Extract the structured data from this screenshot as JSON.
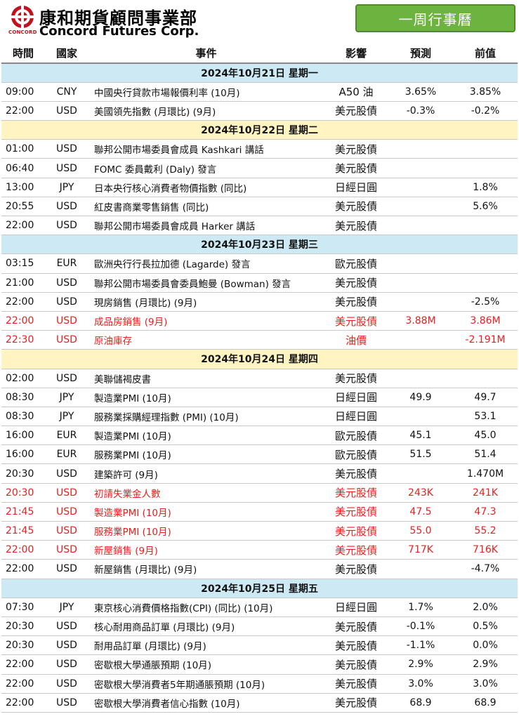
{
  "header": {
    "brand_cn": "康和期貨顧問事業部",
    "brand_en": "Concord Futures Corp.",
    "logo_text": "CONCORD",
    "title": "一周行事曆"
  },
  "columns": [
    "時間",
    "國家",
    "事件",
    "影響",
    "預測",
    "前值"
  ],
  "days": [
    {
      "date": "2024年10月21日  星期一",
      "events": [
        {
          "time": "09:00",
          "country": "CNY",
          "event": "中國央行貸款市場報價利率 (10月)",
          "impact": "A50 油",
          "forecast": "3.65%",
          "previous": "3.85%",
          "highlight": false
        },
        {
          "time": "22:00",
          "country": "USD",
          "event": "美國領先指數 (月環比) (9月)",
          "impact": "美元股債",
          "forecast": "-0.3%",
          "previous": "-0.2%",
          "highlight": false
        }
      ]
    },
    {
      "date": "2024年10月22日  星期二",
      "events": [
        {
          "time": "01:00",
          "country": "USD",
          "event": "聯邦公開市場委員會成員 Kashkari 講話",
          "impact": "美元股債",
          "forecast": "",
          "previous": "",
          "highlight": false
        },
        {
          "time": "06:40",
          "country": "USD",
          "event": "FOMC 委員戴利 (Daly) 發言",
          "impact": "美元股債",
          "forecast": "",
          "previous": "",
          "highlight": false
        },
        {
          "time": "13:00",
          "country": "JPY",
          "event": "日本央行核心消費者物價指數 (同比)",
          "impact": "日經日圓",
          "forecast": "",
          "previous": "1.8%",
          "highlight": false
        },
        {
          "time": "20:55",
          "country": "USD",
          "event": "紅皮書商業零售銷售 (同比)",
          "impact": "美元股債",
          "forecast": "",
          "previous": "5.6%",
          "highlight": false
        },
        {
          "time": "22:00",
          "country": "USD",
          "event": "聯邦公開市場委員會成員 Harker 講話",
          "impact": "美元股債",
          "forecast": "",
          "previous": "",
          "highlight": false
        }
      ]
    },
    {
      "date": "2024年10月23日  星期三",
      "events": [
        {
          "time": "03:15",
          "country": "EUR",
          "event": "歐洲央行行長拉加德 (Lagarde) 發言",
          "impact": "歐元股債",
          "forecast": "",
          "previous": "",
          "highlight": false
        },
        {
          "time": "21:00",
          "country": "USD",
          "event": "聯邦公開市場委員會委員鮑曼 (Bowman) 發言",
          "impact": "美元股債",
          "forecast": "",
          "previous": "",
          "highlight": false
        },
        {
          "time": "22:00",
          "country": "USD",
          "event": "現房銷售 (月環比) (9月)",
          "impact": "美元股債",
          "forecast": "",
          "previous": "-2.5%",
          "highlight": false
        },
        {
          "time": "22:00",
          "country": "USD",
          "event": "成品房銷售 (9月)",
          "impact": "美元股債",
          "forecast": "3.88M",
          "previous": "3.86M",
          "highlight": true
        },
        {
          "time": "22:30",
          "country": "USD",
          "event": "原油庫存",
          "impact": "油價",
          "forecast": "",
          "previous": "-2.191M",
          "highlight": true
        }
      ]
    },
    {
      "date": "2024年10月24日  星期四",
      "events": [
        {
          "time": "02:00",
          "country": "USD",
          "event": "美聯儲褐皮書",
          "impact": "美元股債",
          "forecast": "",
          "previous": "",
          "highlight": false
        },
        {
          "time": "08:30",
          "country": "JPY",
          "event": "製造業PMI (10月)",
          "impact": "日經日圓",
          "forecast": "49.9",
          "previous": "49.7",
          "highlight": false
        },
        {
          "time": "08:30",
          "country": "JPY",
          "event": "服務業採購經理指數 (PMI) (10月)",
          "impact": "日經日圓",
          "forecast": "",
          "previous": "53.1",
          "highlight": false
        },
        {
          "time": "16:00",
          "country": "EUR",
          "event": "製造業PMI (10月)",
          "impact": "歐元股債",
          "forecast": "45.1",
          "previous": "45.0",
          "highlight": false
        },
        {
          "time": "16:00",
          "country": "EUR",
          "event": "服務業PMI (10月)",
          "impact": "歐元股債",
          "forecast": "51.5",
          "previous": "51.4",
          "highlight": false
        },
        {
          "time": "20:30",
          "country": "USD",
          "event": "建築許可 (9月)",
          "impact": "美元股債",
          "forecast": "",
          "previous": "1.470M",
          "highlight": false
        },
        {
          "time": "20:30",
          "country": "USD",
          "event": "初請失業金人數",
          "impact": "美元股債",
          "forecast": "243K",
          "previous": "241K",
          "highlight": true
        },
        {
          "time": "21:45",
          "country": "USD",
          "event": "製造業PMI (10月)",
          "impact": "美元股債",
          "forecast": "47.5",
          "previous": "47.3",
          "highlight": true
        },
        {
          "time": "21:45",
          "country": "USD",
          "event": "服務業PMI (10月)",
          "impact": "美元股債",
          "forecast": "55.0",
          "previous": "55.2",
          "highlight": true
        },
        {
          "time": "22:00",
          "country": "USD",
          "event": "新屋銷售 (9月)",
          "impact": "美元股債",
          "forecast": "717K",
          "previous": "716K",
          "highlight": true
        },
        {
          "time": "22:00",
          "country": "USD",
          "event": "新屋銷售 (月環比) (9月)",
          "impact": "美元股債",
          "forecast": "",
          "previous": "-4.7%",
          "highlight": false
        }
      ]
    },
    {
      "date": "2024年10月25日  星期五",
      "events": [
        {
          "time": "07:30",
          "country": "JPY",
          "event": "東京核心消費價格指數(CPI) (同比) (10月)",
          "impact": "日經日圓",
          "forecast": "1.7%",
          "previous": "2.0%",
          "highlight": false
        },
        {
          "time": "20:30",
          "country": "USD",
          "event": "核心耐用商品訂單 (月環比) (9月)",
          "impact": "美元股債",
          "forecast": "-0.1%",
          "previous": "0.5%",
          "highlight": false
        },
        {
          "time": "20:30",
          "country": "USD",
          "event": "耐用品訂單 (月環比) (9月)",
          "impact": "美元股債",
          "forecast": "-1.1%",
          "previous": "0.0%",
          "highlight": false
        },
        {
          "time": "22:00",
          "country": "USD",
          "event": "密歇根大學通脹預期 (10月)",
          "impact": "美元股債",
          "forecast": "2.9%",
          "previous": "2.9%",
          "highlight": false
        },
        {
          "time": "22:00",
          "country": "USD",
          "event": "密歇根大學消費者5年期通脹預期 (10月)",
          "impact": "美元股債",
          "forecast": "3.0%",
          "previous": "3.0%",
          "highlight": false
        },
        {
          "time": "22:00",
          "country": "USD",
          "event": "密歇根大學消費者信心指數 (10月)",
          "impact": "美元股債",
          "forecast": "68.9",
          "previous": "68.9",
          "highlight": false
        }
      ]
    }
  ],
  "colors": {
    "date_row_blue": "#cde9f3",
    "date_row_yellow": "#fff4c2",
    "highlight_red": "#e8201f",
    "title_green": "#6db33f"
  }
}
